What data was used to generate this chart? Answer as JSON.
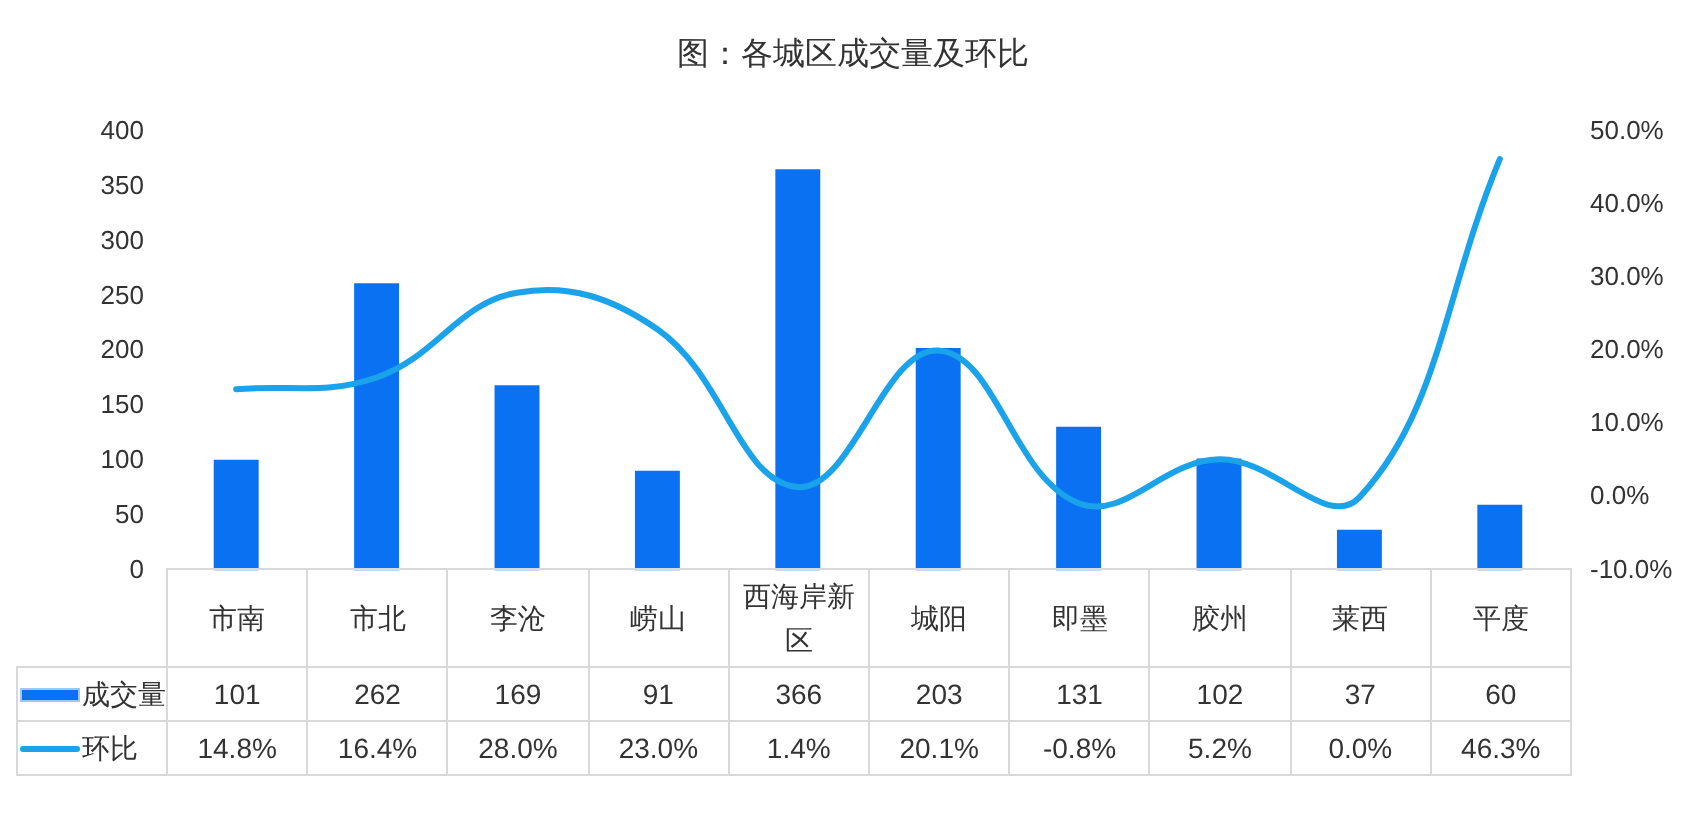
{
  "chart_data": {
    "type": "bar",
    "title": "图：各城区成交量及环比",
    "categories": [
      "市南",
      "市北",
      "李沧",
      "崂山",
      "西海岸新区",
      "城阳",
      "即墨",
      "胶州",
      "莱西",
      "平度"
    ],
    "series": [
      {
        "name": "成交量",
        "color": "#0a72f2",
        "values": [
          101,
          262,
          169,
          91,
          366,
          203,
          131,
          102,
          37,
          60
        ],
        "value_labels": [
          "101",
          "262",
          "169",
          "91",
          "366",
          "203",
          "131",
          "102",
          "37",
          "60"
        ]
      },
      {
        "name": "环比",
        "type": "line",
        "axis": "y2",
        "color": "#1aa3ea",
        "values": [
          14.8,
          16.4,
          28.0,
          23.0,
          1.4,
          20.1,
          -0.8,
          5.2,
          0.0,
          46.3
        ],
        "value_labels": [
          "14.8%",
          "16.4%",
          "28.0%",
          "23.0%",
          "1.4%",
          "20.1%",
          "-0.8%",
          "5.2%",
          "0.0%",
          "46.3%"
        ]
      }
    ],
    "ylim": [
      0,
      400
    ],
    "yticks": [
      0,
      50,
      100,
      150,
      200,
      250,
      300,
      350,
      400
    ],
    "y2lim": [
      -10,
      50
    ],
    "y2ticks": [
      {
        "value": -10,
        "label": "-10.0%"
      },
      {
        "value": 0,
        "label": "0.0%"
      },
      {
        "value": 10,
        "label": "10.0%"
      },
      {
        "value": 20,
        "label": "20.0%"
      },
      {
        "value": 30,
        "label": "30.0%"
      },
      {
        "value": 40,
        "label": "40.0%"
      },
      {
        "value": 50,
        "label": "50.0%"
      }
    ],
    "legend": "bottom left"
  }
}
